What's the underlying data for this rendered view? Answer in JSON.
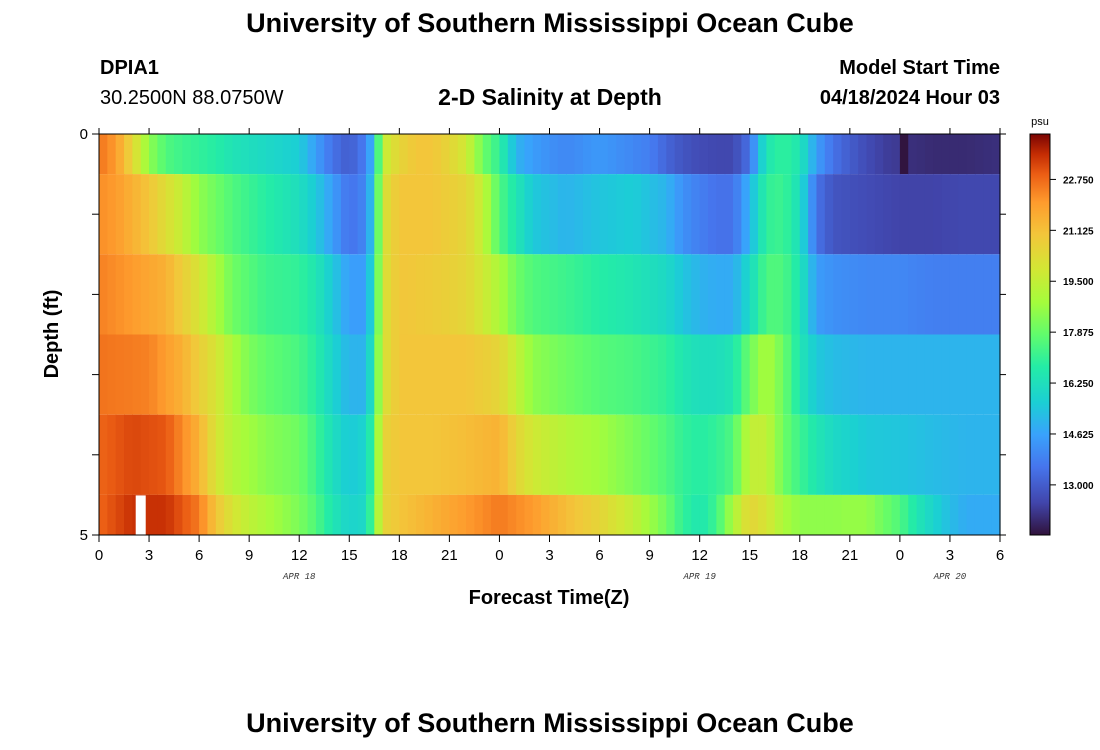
{
  "header": {
    "title": "University of Southern Mississippi Ocean Cube",
    "station_id": "DPIA1",
    "coordinates": "30.2500N  88.0750W",
    "chart_title": "2-D Salinity at Depth",
    "model_start_label": "Model Start Time",
    "model_start_value": "04/18/2024 Hour 03"
  },
  "footer": {
    "title": "University of Southern Mississippi Ocean Cube"
  },
  "chart_data": {
    "type": "heatmap",
    "title": "2-D Salinity at Depth",
    "xlabel": "Forecast Time(Z)",
    "ylabel": "Depth (ft)",
    "x_hours_range": [
      0,
      54
    ],
    "x_tick_labels": [
      "0",
      "3",
      "6",
      "9",
      "12",
      "15",
      "18",
      "21",
      "0",
      "3",
      "6",
      "9",
      "12",
      "15",
      "18",
      "21",
      "0",
      "3",
      "6"
    ],
    "date_labels": [
      {
        "label": "APR 18",
        "hour": 12
      },
      {
        "label": "APR 19",
        "hour": 36
      },
      {
        "label": "APR 20",
        "hour": 51
      }
    ],
    "y_range": [
      0,
      5
    ],
    "y_tick_labels": [
      "0",
      "5"
    ],
    "depth_levels": [
      0,
      1,
      2,
      3,
      4,
      5
    ],
    "colorbar": {
      "unit": "psu",
      "range": [
        11.4,
        24.2
      ],
      "tick_labels": [
        "22.750",
        "21.125",
        "19.500",
        "17.875",
        "16.250",
        "14.625",
        "13.000"
      ]
    },
    "missing_value_color": "#ffffff",
    "salinity_keyframes": [
      {
        "depth": 0,
        "points": [
          [
            0,
            22.6
          ],
          [
            1,
            22
          ],
          [
            2,
            20.5
          ],
          [
            3,
            18.5
          ],
          [
            4,
            17.5
          ],
          [
            5,
            17.2
          ],
          [
            6,
            17
          ],
          [
            7,
            16.8
          ],
          [
            8,
            16.4
          ],
          [
            9,
            16.2
          ],
          [
            10,
            16
          ],
          [
            11,
            15.8
          ],
          [
            12,
            15.6
          ],
          [
            13,
            14.5
          ],
          [
            14,
            13.5
          ],
          [
            15,
            13
          ],
          [
            16,
            13.8
          ],
          [
            16.5,
            15.5
          ],
          [
            17,
            19.5
          ],
          [
            18,
            20.5
          ],
          [
            19,
            21
          ],
          [
            20,
            21
          ],
          [
            21,
            20.5
          ],
          [
            22,
            19.8
          ],
          [
            23,
            18
          ],
          [
            24,
            17
          ],
          [
            25,
            15
          ],
          [
            26,
            14.5
          ],
          [
            27,
            14.2
          ],
          [
            28,
            14
          ],
          [
            29,
            14.2
          ],
          [
            30,
            14.4
          ],
          [
            31,
            14.2
          ],
          [
            32,
            14
          ],
          [
            33,
            13.8
          ],
          [
            34,
            13.2
          ],
          [
            35,
            12.8
          ],
          [
            36,
            12.6
          ],
          [
            37,
            12.5
          ],
          [
            38,
            12.5
          ],
          [
            39,
            13.5
          ],
          [
            40,
            16.5
          ],
          [
            41,
            17
          ],
          [
            42,
            16.5
          ],
          [
            43,
            14.5
          ],
          [
            44,
            13.5
          ],
          [
            45,
            13
          ],
          [
            46,
            12.6
          ],
          [
            47,
            12.3
          ],
          [
            47.9,
            12.2
          ],
          [
            48,
            11.5
          ],
          [
            48.4,
            11.4
          ],
          [
            48.6,
            12
          ],
          [
            50,
            11.9
          ],
          [
            52,
            11.9
          ],
          [
            54,
            12
          ]
        ]
      },
      {
        "depth": 1,
        "points": [
          [
            0,
            22.2
          ],
          [
            1,
            22
          ],
          [
            3,
            21
          ],
          [
            5,
            19.5
          ],
          [
            6,
            18.5
          ],
          [
            8,
            17.5
          ],
          [
            10,
            16.8
          ],
          [
            12,
            16.2
          ],
          [
            13,
            15.5
          ],
          [
            14,
            14.5
          ],
          [
            15,
            13.5
          ],
          [
            16,
            14
          ],
          [
            16.5,
            16
          ],
          [
            17,
            20
          ],
          [
            18,
            21
          ],
          [
            20,
            21
          ],
          [
            22,
            20.5
          ],
          [
            23,
            19.5
          ],
          [
            24,
            17.5
          ],
          [
            25,
            16.5
          ],
          [
            26,
            15.5
          ],
          [
            28,
            15
          ],
          [
            30,
            15.4
          ],
          [
            32,
            15.6
          ],
          [
            34,
            15
          ],
          [
            35,
            14.2
          ],
          [
            36,
            13.8
          ],
          [
            37,
            13.5
          ],
          [
            38,
            13.5
          ],
          [
            39,
            15
          ],
          [
            40,
            17
          ],
          [
            41,
            17.2
          ],
          [
            42,
            16.2
          ],
          [
            43,
            13.5
          ],
          [
            44,
            12.8
          ],
          [
            46,
            12.6
          ],
          [
            48,
            12.4
          ],
          [
            50,
            12.4
          ],
          [
            52,
            12.5
          ],
          [
            54,
            12.5
          ]
        ]
      },
      {
        "depth": 2,
        "points": [
          [
            0,
            22.4
          ],
          [
            2,
            22
          ],
          [
            4,
            21.5
          ],
          [
            6,
            20
          ],
          [
            7,
            19
          ],
          [
            8,
            18
          ],
          [
            10,
            17.2
          ],
          [
            12,
            17
          ],
          [
            13,
            16.5
          ],
          [
            14,
            15.5
          ],
          [
            15,
            14.5
          ],
          [
            16,
            14.5
          ],
          [
            16.5,
            16.5
          ],
          [
            17,
            20
          ],
          [
            18,
            21
          ],
          [
            20,
            20.8
          ],
          [
            22,
            20.5
          ],
          [
            23,
            19.8
          ],
          [
            24,
            19
          ],
          [
            25,
            18
          ],
          [
            26,
            17.5
          ],
          [
            28,
            17.2
          ],
          [
            30,
            16.8
          ],
          [
            32,
            16.5
          ],
          [
            34,
            16
          ],
          [
            35,
            15.4
          ],
          [
            36,
            15
          ],
          [
            37,
            14.8
          ],
          [
            38,
            14.8
          ],
          [
            39,
            16
          ],
          [
            40,
            17.5
          ],
          [
            41,
            17.5
          ],
          [
            42,
            16.5
          ],
          [
            43,
            14.5
          ],
          [
            44,
            14.2
          ],
          [
            46,
            14
          ],
          [
            48,
            14
          ],
          [
            50,
            13.8
          ],
          [
            52,
            13.8
          ],
          [
            54,
            13.8
          ]
        ]
      },
      {
        "depth": 3,
        "points": [
          [
            0,
            22.6
          ],
          [
            3,
            22.4
          ],
          [
            5,
            21.5
          ],
          [
            7,
            20
          ],
          [
            8,
            19
          ],
          [
            9,
            18.2
          ],
          [
            10,
            17.8
          ],
          [
            12,
            17.4
          ],
          [
            13,
            16.8
          ],
          [
            14,
            15.8
          ],
          [
            15,
            15
          ],
          [
            16,
            15
          ],
          [
            16.5,
            17
          ],
          [
            17,
            20
          ],
          [
            18,
            21
          ],
          [
            20,
            21
          ],
          [
            22,
            21
          ],
          [
            24,
            20.5
          ],
          [
            25,
            19.5
          ],
          [
            26,
            18.5
          ],
          [
            28,
            18
          ],
          [
            30,
            17.6
          ],
          [
            32,
            17.4
          ],
          [
            34,
            17
          ],
          [
            35,
            16.5
          ],
          [
            36,
            16.2
          ],
          [
            37,
            16.2
          ],
          [
            38,
            16.5
          ],
          [
            39,
            18
          ],
          [
            40,
            19
          ],
          [
            41,
            18
          ],
          [
            42,
            16.5
          ],
          [
            43,
            15.5
          ],
          [
            44,
            15.2
          ],
          [
            46,
            15
          ],
          [
            48,
            15
          ],
          [
            50,
            15
          ],
          [
            52,
            15
          ],
          [
            54,
            15
          ]
        ]
      },
      {
        "depth": 4,
        "points": [
          [
            0,
            22.8
          ],
          [
            2,
            23.2
          ],
          [
            4,
            23
          ],
          [
            6,
            21.5
          ],
          [
            7,
            20
          ],
          [
            8,
            19.2
          ],
          [
            9,
            18.8
          ],
          [
            10,
            18.4
          ],
          [
            12,
            18
          ],
          [
            13,
            17.2
          ],
          [
            14,
            16.2
          ],
          [
            15,
            15.5
          ],
          [
            16,
            15.8
          ],
          [
            16.5,
            17.5
          ],
          [
            17,
            20.5
          ],
          [
            18,
            21
          ],
          [
            20,
            21
          ],
          [
            22,
            21.2
          ],
          [
            24,
            21.5
          ],
          [
            25,
            20.5
          ],
          [
            26,
            19.8
          ],
          [
            28,
            19.2
          ],
          [
            30,
            18.8
          ],
          [
            32,
            18.2
          ],
          [
            34,
            17.5
          ],
          [
            35,
            17
          ],
          [
            36,
            16.8
          ],
          [
            37,
            17
          ],
          [
            38,
            17.5
          ],
          [
            39,
            19.5
          ],
          [
            40,
            19.5
          ],
          [
            41,
            18
          ],
          [
            42,
            17.2
          ],
          [
            43,
            16.5
          ],
          [
            44,
            16
          ],
          [
            46,
            15.5
          ],
          [
            48,
            15.4
          ],
          [
            50,
            15.2
          ],
          [
            52,
            15
          ],
          [
            54,
            15
          ]
        ]
      },
      {
        "depth": 5,
        "points": [
          [
            0,
            22.8
          ],
          [
            2,
            23.5
          ],
          [
            4,
            23.5
          ],
          [
            6,
            22.5
          ],
          [
            7,
            21
          ],
          [
            8,
            20
          ],
          [
            9,
            19.4
          ],
          [
            10,
            19
          ],
          [
            12,
            18.2
          ],
          [
            13,
            17.5
          ],
          [
            14,
            16.5
          ],
          [
            15,
            15.8
          ],
          [
            16,
            16
          ],
          [
            16.5,
            18
          ],
          [
            17,
            20.5
          ],
          [
            18,
            21
          ],
          [
            20,
            21.5
          ],
          [
            22,
            22
          ],
          [
            24,
            22.5
          ],
          [
            26,
            22
          ],
          [
            28,
            21.2
          ],
          [
            30,
            20.5
          ],
          [
            32,
            19.5
          ],
          [
            34,
            18
          ],
          [
            35,
            17
          ],
          [
            36,
            16.5
          ],
          [
            37,
            17.2
          ],
          [
            38,
            19
          ],
          [
            39,
            20.5
          ],
          [
            40,
            20
          ],
          [
            41,
            19
          ],
          [
            42,
            18.5
          ],
          [
            43,
            18.5
          ],
          [
            44,
            18.5
          ],
          [
            45,
            18.6
          ],
          [
            46,
            18.6
          ],
          [
            47,
            18
          ],
          [
            48,
            17.5
          ],
          [
            49,
            16.5
          ],
          [
            50,
            15.8
          ],
          [
            51,
            15.2
          ],
          [
            52,
            14.8
          ],
          [
            54,
            14.8
          ]
        ]
      }
    ],
    "missing_cells": [
      {
        "depth": 5,
        "hour": 2.5
      }
    ]
  }
}
